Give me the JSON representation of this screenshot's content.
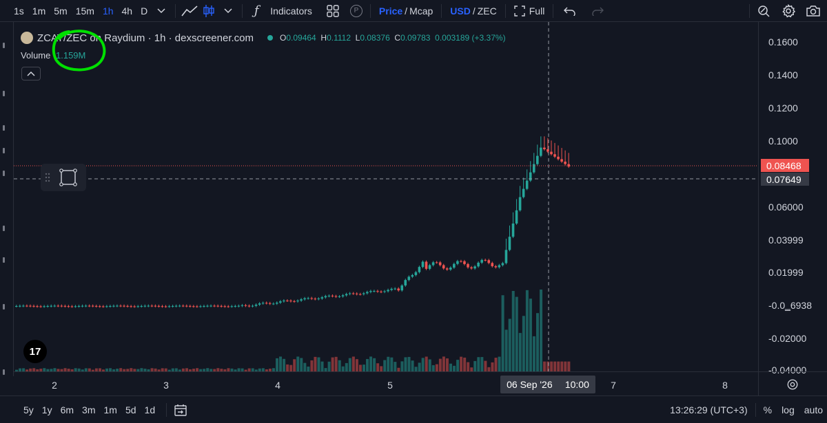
{
  "toolbar": {
    "timeframes": [
      "1s",
      "1m",
      "5m",
      "15m",
      "1h",
      "4h",
      "D"
    ],
    "active_timeframe": "1h",
    "indicators_label": "Indicators",
    "p_badge": "P",
    "price_label": "Price",
    "slash": "/",
    "mcap_label": "Mcap",
    "usd_label": "USD",
    "zec_label": "ZEC",
    "full_label": "Full"
  },
  "legend": {
    "title": "ZCAT/ZEC on Raydium · 1h · dexscreener.com",
    "open_label": "O",
    "open": "0.09464",
    "high_label": "H",
    "high": "0.1112",
    "low_label": "L",
    "low": "0.08376",
    "close_label": "C",
    "close": "0.09783",
    "change": "0.003189 (+3.37%)",
    "volume_label": "Volume",
    "volume_value": "1.159M"
  },
  "logo_text": "17",
  "price_axis": {
    "labels": [
      "0.1600",
      "0.1400",
      "0.1200",
      "0.1000",
      "0.06000",
      "0.03999",
      "0.01999",
      "-0.0‗6938",
      "-0.02000",
      "-0.04000"
    ],
    "current_price": "0.08468",
    "crosshair_price": "0.07649",
    "current_color": "#ef5350",
    "crosshair_color": "#363a45"
  },
  "time_axis": {
    "labels": [
      "2",
      "3",
      "4",
      "5",
      "7",
      "8"
    ],
    "crosshair_date": "06 Sep '26",
    "crosshair_time": "10:00"
  },
  "bottombar": {
    "ranges": [
      "5y",
      "1y",
      "6m",
      "3m",
      "1m",
      "5d",
      "1d"
    ],
    "clock": "13:26:29 (UTC+3)",
    "percent_label": "%",
    "log_label": "log",
    "auto_label": "auto"
  },
  "colors": {
    "up": "#26a69a",
    "down": "#ef5350",
    "background": "#131722",
    "annotation": "#00e000"
  },
  "icons": {
    "toolbar": [
      "chevron-down-icon",
      "line-chart-icon",
      "candles-icon",
      "function-icon",
      "grid-icon",
      "fullscreen-icon",
      "undo-icon",
      "redo-icon",
      "zoom-search-icon",
      "gear-icon",
      "camera-icon"
    ],
    "chart": [
      "collapse-chevron-icon",
      "drag-grip-icon",
      "rectangle-tool-icon",
      "tradingview-logo-icon"
    ],
    "bottombar": [
      "calendar-range-icon"
    ]
  }
}
